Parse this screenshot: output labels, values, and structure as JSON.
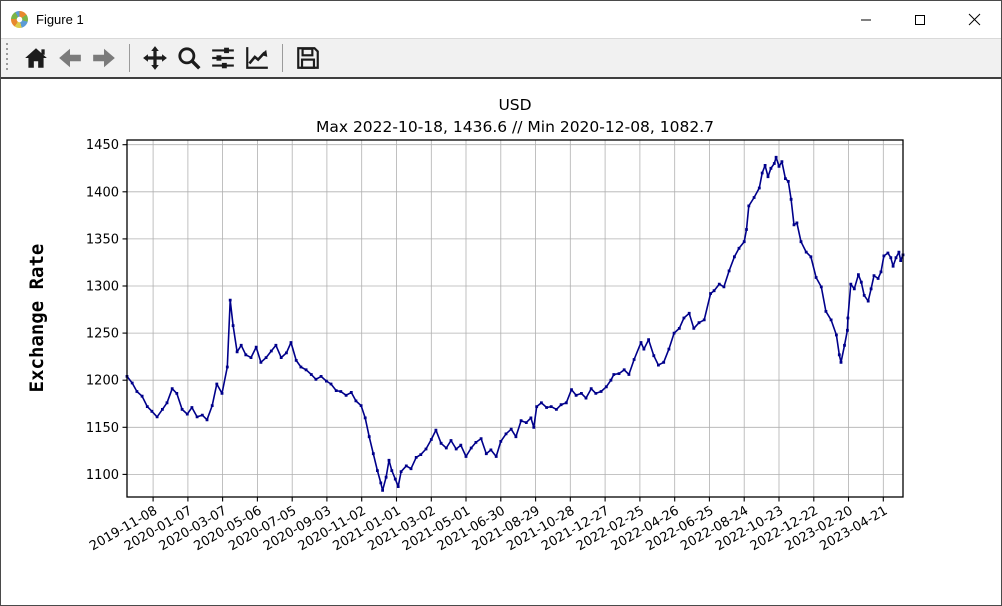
{
  "window": {
    "title": "Figure 1",
    "controls": [
      "minimize-icon",
      "maximize-icon",
      "close-icon"
    ]
  },
  "toolbar": {
    "buttons": [
      "home",
      "back",
      "forward",
      "pan",
      "zoom-to-rect",
      "configure-subplots",
      "edit-axis",
      "save"
    ],
    "disabled_buttons": [
      "back",
      "forward"
    ]
  },
  "chart_data": {
    "type": "line",
    "title": "USD",
    "subtitle": "Max 2022-10-18, 1436.6 // Min 2020-12-08, 1082.7",
    "ylabel": "Exchange Rate",
    "grid": true,
    "line_color": "#00008b",
    "grid_color": "#b0b0b0",
    "ylim": [
      1076,
      1455
    ],
    "xlim": [
      "2019-09-24",
      "2023-05-25"
    ],
    "y_ticks": [
      1100,
      1150,
      1200,
      1250,
      1300,
      1350,
      1400,
      1450
    ],
    "x_ticks": [
      "2019-11-08",
      "2020-01-07",
      "2020-03-07",
      "2020-05-06",
      "2020-07-05",
      "2020-09-03",
      "2020-11-02",
      "2021-01-01",
      "2021-03-02",
      "2021-05-01",
      "2021-06-30",
      "2021-08-29",
      "2021-10-28",
      "2021-12-27",
      "2022-02-25",
      "2022-04-26",
      "2022-06-25",
      "2022-08-24",
      "2022-10-23",
      "2022-12-22",
      "2023-02-20",
      "2023-04-21"
    ],
    "series": [
      {
        "name": "USD",
        "points": [
          [
            "2019-09-24",
            1204
          ],
          [
            "2019-10-03",
            1197
          ],
          [
            "2019-10-11",
            1188
          ],
          [
            "2019-10-20",
            1183
          ],
          [
            "2019-10-29",
            1172
          ],
          [
            "2019-11-06",
            1167
          ],
          [
            "2019-11-15",
            1161
          ],
          [
            "2019-11-24",
            1169
          ],
          [
            "2019-12-02",
            1176
          ],
          [
            "2019-12-11",
            1191
          ],
          [
            "2019-12-19",
            1186
          ],
          [
            "2019-12-28",
            1169
          ],
          [
            "2020-01-06",
            1164
          ],
          [
            "2020-01-14",
            1171
          ],
          [
            "2020-01-23",
            1161
          ],
          [
            "2020-02-01",
            1163
          ],
          [
            "2020-02-09",
            1158
          ],
          [
            "2020-02-18",
            1173
          ],
          [
            "2020-02-26",
            1196
          ],
          [
            "2020-03-06",
            1186
          ],
          [
            "2020-03-15",
            1214
          ],
          [
            "2020-03-20",
            1285
          ],
          [
            "2020-03-25",
            1258
          ],
          [
            "2020-04-01",
            1230
          ],
          [
            "2020-04-08",
            1237
          ],
          [
            "2020-04-16",
            1227
          ],
          [
            "2020-04-25",
            1224
          ],
          [
            "2020-05-04",
            1235
          ],
          [
            "2020-05-12",
            1219
          ],
          [
            "2020-05-21",
            1224
          ],
          [
            "2020-05-30",
            1231
          ],
          [
            "2020-06-07",
            1237
          ],
          [
            "2020-06-16",
            1224
          ],
          [
            "2020-06-25",
            1229
          ],
          [
            "2020-07-03",
            1240
          ],
          [
            "2020-07-12",
            1221
          ],
          [
            "2020-07-20",
            1214
          ],
          [
            "2020-07-29",
            1211
          ],
          [
            "2020-08-07",
            1206
          ],
          [
            "2020-08-15",
            1201
          ],
          [
            "2020-08-24",
            1204
          ],
          [
            "2020-09-02",
            1199
          ],
          [
            "2020-09-10",
            1196
          ],
          [
            "2020-09-19",
            1189
          ],
          [
            "2020-09-27",
            1188
          ],
          [
            "2020-10-06",
            1184
          ],
          [
            "2020-10-15",
            1187
          ],
          [
            "2020-10-23",
            1178
          ],
          [
            "2020-11-01",
            1173
          ],
          [
            "2020-11-08",
            1160
          ],
          [
            "2020-11-15",
            1140
          ],
          [
            "2020-11-22",
            1122
          ],
          [
            "2020-11-29",
            1104
          ],
          [
            "2020-12-05",
            1091
          ],
          [
            "2020-12-08",
            1083
          ],
          [
            "2020-12-14",
            1097
          ],
          [
            "2020-12-19",
            1115
          ],
          [
            "2020-12-24",
            1104
          ],
          [
            "2020-12-30",
            1095
          ],
          [
            "2021-01-04",
            1087
          ],
          [
            "2021-01-09",
            1103
          ],
          [
            "2021-01-18",
            1109
          ],
          [
            "2021-01-26",
            1106
          ],
          [
            "2021-02-04",
            1118
          ],
          [
            "2021-02-12",
            1121
          ],
          [
            "2021-02-21",
            1127
          ],
          [
            "2021-03-02",
            1137
          ],
          [
            "2021-03-10",
            1147
          ],
          [
            "2021-03-19",
            1133
          ],
          [
            "2021-03-28",
            1128
          ],
          [
            "2021-04-05",
            1136
          ],
          [
            "2021-04-14",
            1127
          ],
          [
            "2021-04-22",
            1131
          ],
          [
            "2021-05-01",
            1119
          ],
          [
            "2021-05-10",
            1128
          ],
          [
            "2021-05-18",
            1134
          ],
          [
            "2021-05-27",
            1138
          ],
          [
            "2021-06-05",
            1122
          ],
          [
            "2021-06-13",
            1126
          ],
          [
            "2021-06-22",
            1119
          ],
          [
            "2021-06-30",
            1135
          ],
          [
            "2021-07-09",
            1143
          ],
          [
            "2021-07-18",
            1148
          ],
          [
            "2021-07-26",
            1140
          ],
          [
            "2021-08-04",
            1157
          ],
          [
            "2021-08-13",
            1155
          ],
          [
            "2021-08-21",
            1160
          ],
          [
            "2021-08-26",
            1150
          ],
          [
            "2021-08-31",
            1172
          ],
          [
            "2021-09-08",
            1176
          ],
          [
            "2021-09-17",
            1171
          ],
          [
            "2021-09-25",
            1172
          ],
          [
            "2021-10-04",
            1169
          ],
          [
            "2021-10-12",
            1174
          ],
          [
            "2021-10-21",
            1176
          ],
          [
            "2021-10-30",
            1190
          ],
          [
            "2021-11-07",
            1184
          ],
          [
            "2021-11-16",
            1186
          ],
          [
            "2021-11-24",
            1181
          ],
          [
            "2021-12-03",
            1191
          ],
          [
            "2021-12-11",
            1186
          ],
          [
            "2021-12-20",
            1188
          ],
          [
            "2021-12-29",
            1193
          ],
          [
            "2022-01-06",
            1200
          ],
          [
            "2022-01-11",
            1206
          ],
          [
            "2022-01-20",
            1207
          ],
          [
            "2022-01-29",
            1211
          ],
          [
            "2022-02-06",
            1206
          ],
          [
            "2022-02-15",
            1222
          ],
          [
            "2022-02-27",
            1240
          ],
          [
            "2022-03-04",
            1233
          ],
          [
            "2022-03-12",
            1243
          ],
          [
            "2022-03-21",
            1226
          ],
          [
            "2022-03-29",
            1216
          ],
          [
            "2022-04-07",
            1219
          ],
          [
            "2022-04-16",
            1233
          ],
          [
            "2022-04-25",
            1250
          ],
          [
            "2022-05-04",
            1255
          ],
          [
            "2022-05-12",
            1266
          ],
          [
            "2022-05-21",
            1271
          ],
          [
            "2022-05-29",
            1255
          ],
          [
            "2022-06-07",
            1261
          ],
          [
            "2022-06-16",
            1264
          ],
          [
            "2022-06-27",
            1292
          ],
          [
            "2022-07-03",
            1295
          ],
          [
            "2022-07-12",
            1302
          ],
          [
            "2022-07-20",
            1299
          ],
          [
            "2022-07-29",
            1316
          ],
          [
            "2022-08-07",
            1331
          ],
          [
            "2022-08-15",
            1340
          ],
          [
            "2022-08-24",
            1347
          ],
          [
            "2022-08-28",
            1360
          ],
          [
            "2022-09-01",
            1385
          ],
          [
            "2022-09-10",
            1394
          ],
          [
            "2022-09-19",
            1404
          ],
          [
            "2022-09-24",
            1420
          ],
          [
            "2022-09-29",
            1428
          ],
          [
            "2022-10-04",
            1416
          ],
          [
            "2022-10-09",
            1425
          ],
          [
            "2022-10-15",
            1430
          ],
          [
            "2022-10-18",
            1436.6
          ],
          [
            "2022-10-23",
            1427
          ],
          [
            "2022-10-28",
            1432
          ],
          [
            "2022-11-03",
            1414
          ],
          [
            "2022-11-08",
            1411
          ],
          [
            "2022-11-13",
            1392
          ],
          [
            "2022-11-18",
            1365
          ],
          [
            "2022-11-23",
            1367
          ],
          [
            "2022-11-30",
            1347
          ],
          [
            "2022-12-09",
            1336
          ],
          [
            "2022-12-17",
            1331
          ],
          [
            "2022-12-26",
            1309
          ],
          [
            "2023-01-04",
            1299
          ],
          [
            "2023-01-12",
            1273
          ],
          [
            "2023-01-21",
            1264
          ],
          [
            "2023-01-30",
            1248
          ],
          [
            "2023-02-04",
            1227
          ],
          [
            "2023-02-07",
            1219
          ],
          [
            "2023-02-13",
            1237
          ],
          [
            "2023-02-18",
            1253
          ],
          [
            "2023-02-19",
            1266
          ],
          [
            "2023-02-24",
            1302
          ],
          [
            "2023-03-02",
            1297
          ],
          [
            "2023-03-09",
            1312
          ],
          [
            "2023-03-14",
            1304
          ],
          [
            "2023-03-19",
            1290
          ],
          [
            "2023-03-26",
            1284
          ],
          [
            "2023-03-31",
            1297
          ],
          [
            "2023-04-05",
            1311
          ],
          [
            "2023-04-12",
            1308
          ],
          [
            "2023-04-17",
            1315
          ],
          [
            "2023-04-22",
            1332
          ],
          [
            "2023-04-29",
            1335
          ],
          [
            "2023-05-04",
            1330
          ],
          [
            "2023-05-08",
            1321
          ],
          [
            "2023-05-13",
            1330
          ],
          [
            "2023-05-18",
            1336
          ],
          [
            "2023-05-21",
            1327
          ],
          [
            "2023-05-25",
            1333
          ]
        ]
      }
    ]
  }
}
